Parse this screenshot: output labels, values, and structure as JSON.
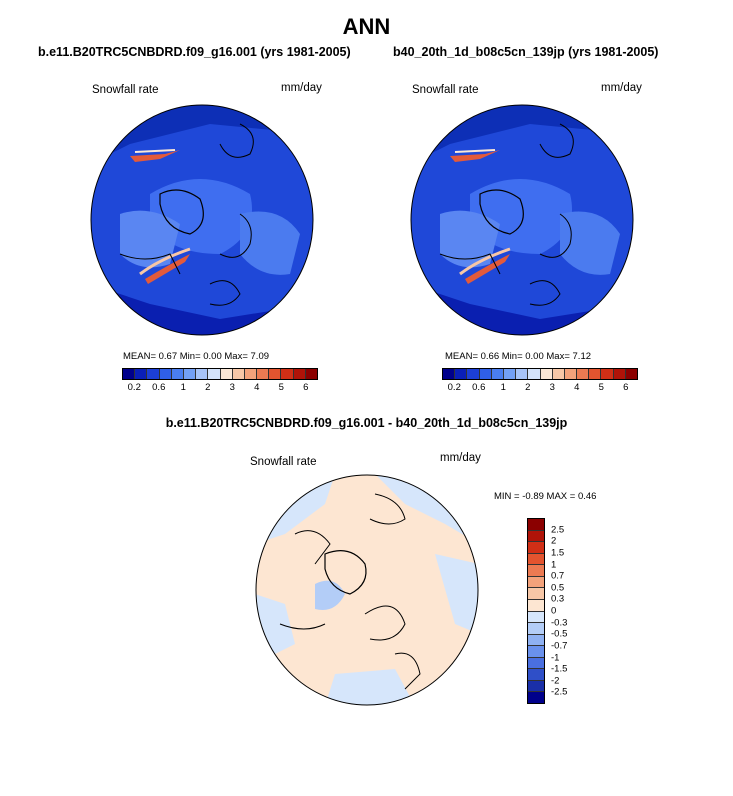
{
  "season": "ANN",
  "panels": [
    {
      "case_title": "b.e11.B20TRC5CNBDRD.f09_g16.001 (yrs 1981-2005)",
      "variable": "Snowfall rate",
      "units": "mm/day",
      "stats": "MEAN=   0.67  Min=   0.00  Max=   7.09"
    },
    {
      "case_title": "b40_20th_1d_b08c5cn_139jp (yrs 1981-2005)",
      "variable": "Snowfall rate",
      "units": "mm/day",
      "stats": "MEAN=   0.66  Min=   0.00  Max=   7.12"
    }
  ],
  "colorbar": {
    "labels": [
      "0.2",
      "0.6",
      "1",
      "2",
      "3",
      "4",
      "5",
      "6"
    ],
    "colors": [
      "#00008b",
      "#0a1fb8",
      "#1c3fd6",
      "#2f5fe8",
      "#4a7ef0",
      "#73a0f5",
      "#a8c4f8",
      "#d4e3fb",
      "#fbe7d6",
      "#f7c7a7",
      "#f3a27b",
      "#ec7a52",
      "#e3542f",
      "#d12f16",
      "#b01308",
      "#8b0000"
    ]
  },
  "difference": {
    "title": "b.e11.B20TRC5CNBDRD.f09_g16.001 - b40_20th_1d_b08c5cn_139jp",
    "variable": "Snowfall rate",
    "units": "mm/day",
    "stats": "MIN =  -0.89 MAX =   0.46",
    "colorbar_labels": [
      "2.5",
      "2",
      "1.5",
      "1",
      "0.7",
      "0.5",
      "0.3",
      "0",
      "-0.3",
      "-0.5",
      "-0.7",
      "-1",
      "-1.5",
      "-2",
      "-2.5"
    ],
    "colorbar_colors": [
      "#8b0000",
      "#b01308",
      "#d12f16",
      "#e3542f",
      "#ec7a52",
      "#f3a27b",
      "#f7c7a7",
      "#fde6d2",
      "#d6e6fb",
      "#b3cdf7",
      "#8fb1f2",
      "#6a91ec",
      "#4a6fe0",
      "#2f4fc8",
      "#1a2fa8",
      "#00008b"
    ]
  }
}
